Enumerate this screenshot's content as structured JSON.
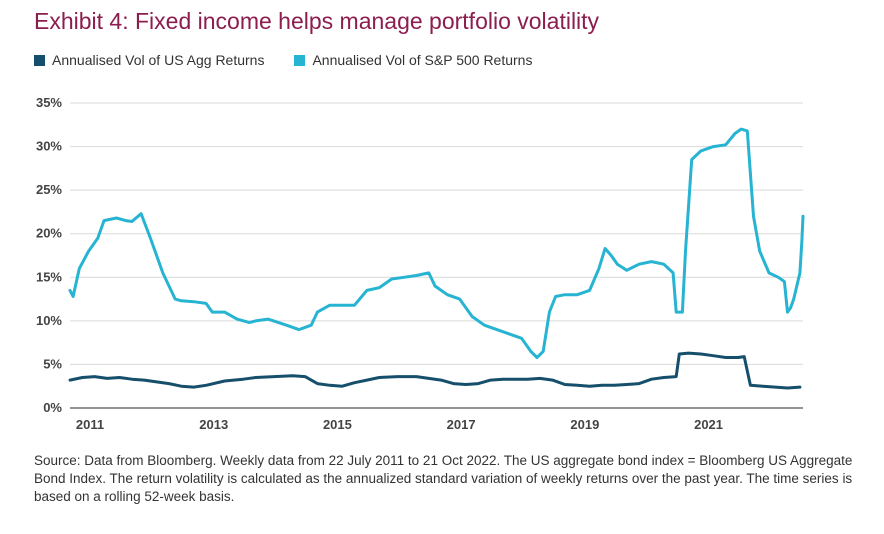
{
  "title": "Exhibit 4: Fixed income helps manage portfolio volatility",
  "source": "Source: Data from Bloomberg. Weekly data from 22 July 2011 to 21 Oct 2022. The US aggregate bond index = Bloomberg US Aggregate Bond Index. The return volatility is calculated as the annualized standard variation of weekly returns over the past year. The time series is based on a rolling 52-week basis.",
  "colors": {
    "agg": "#154f6b",
    "spx": "#27b4d2",
    "title": "#8b1d4f",
    "grid": "#d9d9d9"
  },
  "chart_data": {
    "type": "line",
    "title": "Exhibit 4: Fixed income helps manage portfolio volatility",
    "xlabel": "",
    "ylabel": "",
    "xlim": [
      2011.0,
      2022.85
    ],
    "ylim": [
      0,
      35
    ],
    "x_ticks": [
      2011,
      2013,
      2015,
      2017,
      2019,
      2021
    ],
    "x_tick_labels": [
      "2011",
      "2013",
      "2015",
      "2017",
      "2019",
      "2021"
    ],
    "y_ticks": [
      0,
      5,
      10,
      15,
      20,
      25,
      30,
      35
    ],
    "y_tick_labels": [
      "0%",
      "5%",
      "10%",
      "15%",
      "20%",
      "25%",
      "30%",
      "35%"
    ],
    "grid": true,
    "legend_position": "top-left",
    "series": [
      {
        "name": "Annualised Vol of US Agg Returns",
        "color": "#154f6b",
        "points": [
          [
            2011.0,
            3.2
          ],
          [
            2011.2,
            3.5
          ],
          [
            2011.4,
            3.6
          ],
          [
            2011.6,
            3.4
          ],
          [
            2011.8,
            3.5
          ],
          [
            2012.0,
            3.3
          ],
          [
            2012.2,
            3.2
          ],
          [
            2012.4,
            3.0
          ],
          [
            2012.6,
            2.8
          ],
          [
            2012.8,
            2.5
          ],
          [
            2013.0,
            2.4
          ],
          [
            2013.2,
            2.6
          ],
          [
            2013.5,
            3.1
          ],
          [
            2013.8,
            3.3
          ],
          [
            2014.0,
            3.5
          ],
          [
            2014.3,
            3.6
          ],
          [
            2014.6,
            3.7
          ],
          [
            2014.8,
            3.6
          ],
          [
            2015.0,
            2.8
          ],
          [
            2015.2,
            2.6
          ],
          [
            2015.4,
            2.5
          ],
          [
            2015.6,
            2.9
          ],
          [
            2015.8,
            3.2
          ],
          [
            2016.0,
            3.5
          ],
          [
            2016.3,
            3.6
          ],
          [
            2016.6,
            3.6
          ],
          [
            2016.8,
            3.4
          ],
          [
            2017.0,
            3.2
          ],
          [
            2017.2,
            2.8
          ],
          [
            2017.4,
            2.7
          ],
          [
            2017.6,
            2.8
          ],
          [
            2017.8,
            3.2
          ],
          [
            2018.0,
            3.3
          ],
          [
            2018.2,
            3.3
          ],
          [
            2018.4,
            3.3
          ],
          [
            2018.6,
            3.4
          ],
          [
            2018.8,
            3.2
          ],
          [
            2019.0,
            2.7
          ],
          [
            2019.2,
            2.6
          ],
          [
            2019.4,
            2.5
          ],
          [
            2019.6,
            2.6
          ],
          [
            2019.8,
            2.6
          ],
          [
            2020.0,
            2.7
          ],
          [
            2020.2,
            2.8
          ],
          [
            2020.4,
            3.3
          ],
          [
            2020.6,
            3.5
          ],
          [
            2020.8,
            3.6
          ],
          [
            2020.85,
            6.2
          ],
          [
            2021.0,
            6.3
          ],
          [
            2021.2,
            6.2
          ],
          [
            2021.4,
            6.0
          ],
          [
            2021.6,
            5.8
          ],
          [
            2021.8,
            5.8
          ],
          [
            2021.9,
            5.9
          ],
          [
            2022.0,
            2.6
          ],
          [
            2022.2,
            2.5
          ],
          [
            2022.4,
            2.4
          ],
          [
            2022.6,
            2.3
          ],
          [
            2022.8,
            2.4
          ]
        ]
      },
      {
        "name": "Annualised Vol of S&P 500 Returns",
        "color": "#27b4d2",
        "points": [
          [
            2011.0,
            13.5
          ],
          [
            2011.05,
            12.8
          ],
          [
            2011.15,
            16
          ],
          [
            2011.3,
            18
          ],
          [
            2011.45,
            19.5
          ],
          [
            2011.55,
            21.5
          ],
          [
            2011.75,
            21.8
          ],
          [
            2011.9,
            21.5
          ],
          [
            2012.0,
            21.4
          ],
          [
            2012.15,
            22.3
          ],
          [
            2012.3,
            19.5
          ],
          [
            2012.5,
            15.5
          ],
          [
            2012.7,
            12.5
          ],
          [
            2012.8,
            12.3
          ],
          [
            2013.0,
            12.2
          ],
          [
            2013.2,
            12.0
          ],
          [
            2013.3,
            11.0
          ],
          [
            2013.5,
            11.0
          ],
          [
            2013.7,
            10.2
          ],
          [
            2013.9,
            9.8
          ],
          [
            2014.0,
            10.0
          ],
          [
            2014.2,
            10.2
          ],
          [
            2014.5,
            9.5
          ],
          [
            2014.7,
            9.0
          ],
          [
            2014.9,
            9.5
          ],
          [
            2015.0,
            11.0
          ],
          [
            2015.2,
            11.8
          ],
          [
            2015.4,
            11.8
          ],
          [
            2015.6,
            11.8
          ],
          [
            2015.8,
            13.5
          ],
          [
            2016.0,
            13.8
          ],
          [
            2016.2,
            14.8
          ],
          [
            2016.4,
            15.0
          ],
          [
            2016.6,
            15.2
          ],
          [
            2016.8,
            15.5
          ],
          [
            2016.9,
            14.0
          ],
          [
            2017.1,
            13.0
          ],
          [
            2017.3,
            12.5
          ],
          [
            2017.5,
            10.5
          ],
          [
            2017.7,
            9.5
          ],
          [
            2017.9,
            9.0
          ],
          [
            2018.1,
            8.5
          ],
          [
            2018.3,
            8.0
          ],
          [
            2018.45,
            6.5
          ],
          [
            2018.55,
            5.8
          ],
          [
            2018.65,
            6.5
          ],
          [
            2018.75,
            11.0
          ],
          [
            2018.85,
            12.8
          ],
          [
            2019.0,
            13.0
          ],
          [
            2019.2,
            13.0
          ],
          [
            2019.4,
            13.5
          ],
          [
            2019.55,
            16.0
          ],
          [
            2019.65,
            18.3
          ],
          [
            2019.75,
            17.5
          ],
          [
            2019.85,
            16.5
          ],
          [
            2020.0,
            15.8
          ],
          [
            2020.2,
            16.5
          ],
          [
            2020.4,
            16.8
          ],
          [
            2020.6,
            16.5
          ],
          [
            2020.75,
            15.5
          ],
          [
            2020.8,
            11.0
          ],
          [
            2020.9,
            11.0
          ],
          [
            2020.95,
            18.0
          ],
          [
            2021.05,
            28.5
          ],
          [
            2021.2,
            29.5
          ],
          [
            2021.4,
            30.0
          ],
          [
            2021.6,
            30.2
          ],
          [
            2021.75,
            31.5
          ],
          [
            2021.85,
            32.0
          ],
          [
            2021.95,
            31.8
          ],
          [
            2022.05,
            22.0
          ],
          [
            2022.15,
            18.0
          ],
          [
            2022.3,
            15.5
          ],
          [
            2022.45,
            15.0
          ],
          [
            2022.55,
            14.5
          ],
          [
            2022.6,
            11.0
          ],
          [
            2022.65,
            11.5
          ],
          [
            2022.7,
            12.5
          ],
          [
            2022.75,
            14.0
          ],
          [
            2022.8,
            15.5
          ],
          [
            2022.83,
            19.0
          ],
          [
            2022.85,
            22.0
          ]
        ]
      }
    ]
  }
}
